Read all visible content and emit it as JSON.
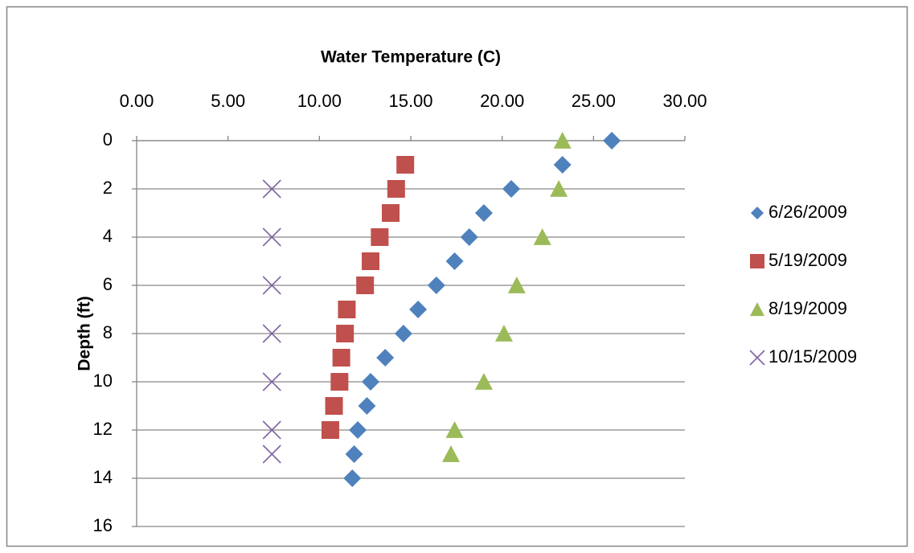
{
  "chart_data": {
    "type": "scatter",
    "xlabel": "Water Temperature (C)",
    "ylabel": "Depth (ft)",
    "x_axis_position": "top",
    "y_inverted": true,
    "grid": true,
    "legend": "right",
    "xlim": [
      0,
      30
    ],
    "xticks": [
      {
        "value": 0,
        "label": "0.00"
      },
      {
        "value": 5,
        "label": "5.00"
      },
      {
        "value": 10,
        "label": "10.00"
      },
      {
        "value": 15,
        "label": "15.00"
      },
      {
        "value": 20,
        "label": "20.00"
      },
      {
        "value": 25,
        "label": "25.00"
      },
      {
        "value": 30,
        "label": "30.00"
      }
    ],
    "ylim": [
      0,
      16
    ],
    "yticks": [
      0,
      2,
      4,
      6,
      8,
      10,
      12,
      14,
      16
    ],
    "series": [
      {
        "name": "6/26/2009",
        "color": "#4f81bd",
        "marker": "diamond",
        "x": [
          26.0,
          23.3,
          20.5,
          19.0,
          18.2,
          17.4,
          16.4,
          15.4,
          14.6,
          13.6,
          12.8,
          12.6,
          12.1,
          11.9,
          11.8
        ],
        "y": [
          0,
          1,
          2,
          3,
          4,
          5,
          6,
          7,
          8,
          9,
          10,
          11,
          12,
          13,
          14
        ]
      },
      {
        "name": "5/19/2009",
        "color": "#c0504d",
        "marker": "square",
        "x": [
          14.7,
          14.2,
          13.9,
          13.3,
          12.8,
          12.5,
          11.5,
          11.4,
          11.2,
          11.1,
          10.8,
          10.6
        ],
        "y": [
          1,
          2,
          3,
          4,
          5,
          6,
          7,
          8,
          9,
          10,
          11,
          12
        ]
      },
      {
        "name": "8/19/2009",
        "color": "#9bbb59",
        "marker": "triangle",
        "x": [
          23.3,
          23.1,
          22.2,
          20.8,
          20.1,
          19.0,
          17.4,
          17.2
        ],
        "y": [
          0,
          2,
          4,
          6,
          8,
          10,
          12,
          13
        ]
      },
      {
        "name": "10/15/2009",
        "color": "#8064a2",
        "marker": "x",
        "x": [
          7.4,
          7.4,
          7.4,
          7.4,
          7.4,
          7.4,
          7.4
        ],
        "y": [
          2,
          4,
          6,
          8,
          10,
          12,
          13
        ]
      }
    ]
  }
}
